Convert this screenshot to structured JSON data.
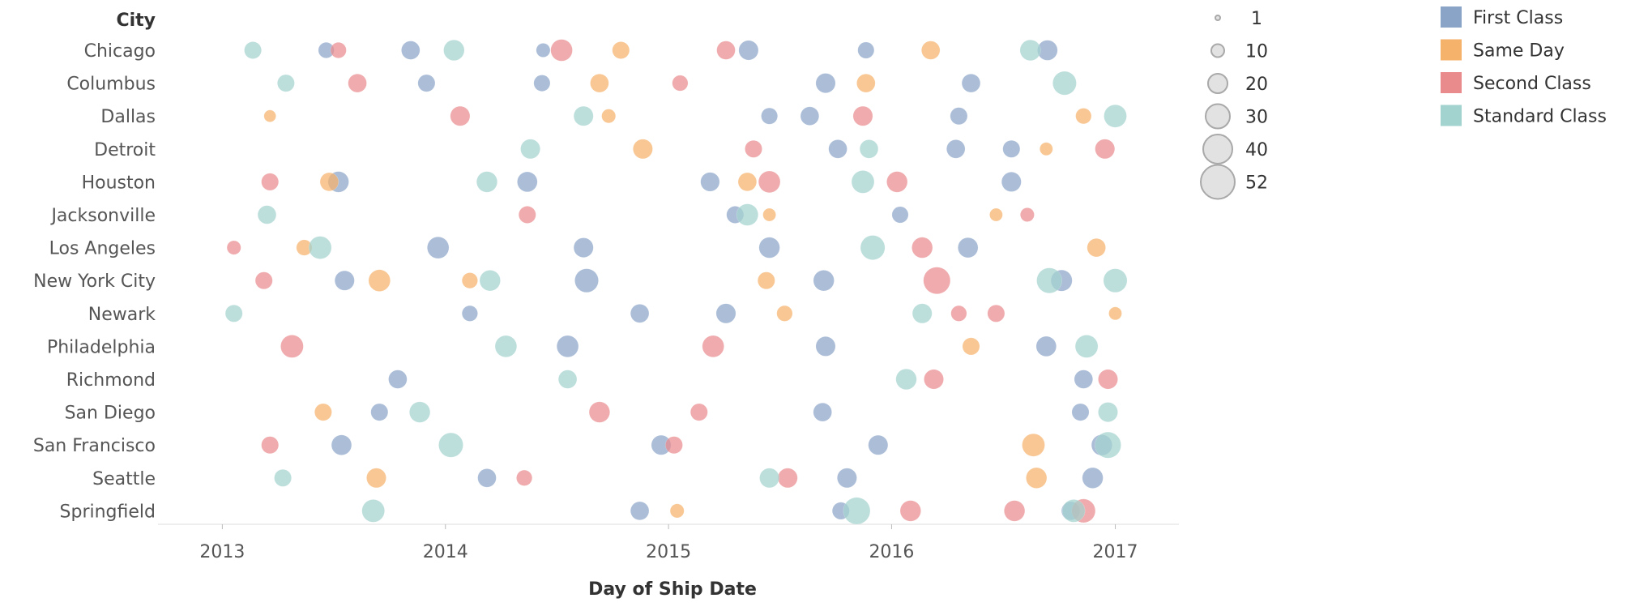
{
  "chart_data": {
    "type": "scatter",
    "row_header": "City",
    "xlabel": "Day of Ship Date",
    "ylabel": "",
    "x_tick_labels": [
      "2013",
      "2014",
      "2015",
      "2016",
      "2017"
    ],
    "x_range": [
      "2012-10-01",
      "2017-04-15"
    ],
    "categories": [
      "Chicago",
      "Columbus",
      "Dallas",
      "Detroit",
      "Houston",
      "Jacksonville",
      "Los Angeles",
      "New York City",
      "Newark",
      "Philadelphia",
      "Richmond",
      "San Diego",
      "San Francisco",
      "Seattle",
      "Springfield"
    ],
    "size_legend": {
      "values": [
        1,
        10,
        20,
        30,
        40,
        52
      ],
      "labels": [
        "1",
        "10",
        "20",
        "30",
        "40",
        "52"
      ]
    },
    "color_legend": [
      {
        "name": "First Class",
        "color": "#8AA4C8"
      },
      {
        "name": "Same Day",
        "color": "#F5B26B"
      },
      {
        "name": "Second Class",
        "color": "#E98A8D"
      },
      {
        "name": "Standard Class",
        "color": "#A3D3CE"
      }
    ],
    "grid": false,
    "legend_position": "right",
    "series": [
      {
        "name": "First Class",
        "points": [
          {
            "city": "Chicago",
            "date": "2013-06-20",
            "qty": 8
          },
          {
            "city": "Chicago",
            "date": "2013-11-05",
            "qty": 12
          },
          {
            "city": "Chicago",
            "date": "2014-06-10",
            "qty": 6
          },
          {
            "city": "Chicago",
            "date": "2015-05-12",
            "qty": 14
          },
          {
            "city": "Chicago",
            "date": "2015-11-20",
            "qty": 9
          },
          {
            "city": "Chicago",
            "date": "2016-09-12",
            "qty": 15
          },
          {
            "city": "Columbus",
            "date": "2013-12-01",
            "qty": 10
          },
          {
            "city": "Columbus",
            "date": "2014-06-08",
            "qty": 9
          },
          {
            "city": "Columbus",
            "date": "2015-09-15",
            "qty": 14
          },
          {
            "city": "Columbus",
            "date": "2016-05-10",
            "qty": 12
          },
          {
            "city": "Dallas",
            "date": "2015-06-15",
            "qty": 9
          },
          {
            "city": "Dallas",
            "date": "2015-08-20",
            "qty": 12
          },
          {
            "city": "Dallas",
            "date": "2016-04-20",
            "qty": 10
          },
          {
            "city": "Detroit",
            "date": "2015-10-05",
            "qty": 12
          },
          {
            "city": "Detroit",
            "date": "2016-04-15",
            "qty": 12
          },
          {
            "city": "Detroit",
            "date": "2016-07-15",
            "qty": 10
          },
          {
            "city": "Houston",
            "date": "2013-07-10",
            "qty": 16
          },
          {
            "city": "Houston",
            "date": "2014-05-15",
            "qty": 15
          },
          {
            "city": "Houston",
            "date": "2015-03-10",
            "qty": 13
          },
          {
            "city": "Houston",
            "date": "2016-07-15",
            "qty": 14
          },
          {
            "city": "Jacksonville",
            "date": "2015-04-20",
            "qty": 10
          },
          {
            "city": "Jacksonville",
            "date": "2016-01-15",
            "qty": 9
          },
          {
            "city": "Los Angeles",
            "date": "2013-12-20",
            "qty": 18
          },
          {
            "city": "Los Angeles",
            "date": "2014-08-15",
            "qty": 14
          },
          {
            "city": "Los Angeles",
            "date": "2015-06-15",
            "qty": 16
          },
          {
            "city": "Los Angeles",
            "date": "2016-05-05",
            "qty": 15
          },
          {
            "city": "New York City",
            "date": "2013-07-20",
            "qty": 14
          },
          {
            "city": "New York City",
            "date": "2014-08-20",
            "qty": 22
          },
          {
            "city": "New York City",
            "date": "2015-09-12",
            "qty": 16
          },
          {
            "city": "New York City",
            "date": "2016-10-05",
            "qty": 17
          },
          {
            "city": "Newark",
            "date": "2014-02-10",
            "qty": 8
          },
          {
            "city": "Newark",
            "date": "2014-11-15",
            "qty": 12
          },
          {
            "city": "Newark",
            "date": "2015-04-05",
            "qty": 14
          },
          {
            "city": "Philadelphia",
            "date": "2014-07-20",
            "qty": 18
          },
          {
            "city": "Philadelphia",
            "date": "2015-09-15",
            "qty": 14
          },
          {
            "city": "Philadelphia",
            "date": "2016-09-10",
            "qty": 15
          },
          {
            "city": "Richmond",
            "date": "2013-10-15",
            "qty": 12
          },
          {
            "city": "Richmond",
            "date": "2016-11-10",
            "qty": 12
          },
          {
            "city": "San Diego",
            "date": "2013-09-15",
            "qty": 10
          },
          {
            "city": "San Diego",
            "date": "2015-09-10",
            "qty": 12
          },
          {
            "city": "San Diego",
            "date": "2016-11-05",
            "qty": 10
          },
          {
            "city": "San Francisco",
            "date": "2013-07-15",
            "qty": 15
          },
          {
            "city": "San Francisco",
            "date": "2014-12-20",
            "qty": 14
          },
          {
            "city": "San Francisco",
            "date": "2015-12-10",
            "qty": 14
          },
          {
            "city": "San Francisco",
            "date": "2016-12-10",
            "qty": 16
          },
          {
            "city": "Seattle",
            "date": "2014-03-10",
            "qty": 12
          },
          {
            "city": "Seattle",
            "date": "2015-10-20",
            "qty": 14
          },
          {
            "city": "Seattle",
            "date": "2016-11-25",
            "qty": 16
          },
          {
            "city": "Springfield",
            "date": "2014-11-15",
            "qty": 12
          },
          {
            "city": "Springfield",
            "date": "2015-10-10",
            "qty": 10
          },
          {
            "city": "Springfield",
            "date": "2016-10-20",
            "qty": 12
          }
        ]
      },
      {
        "name": "Same Day",
        "points": [
          {
            "city": "Chicago",
            "date": "2014-10-15",
            "qty": 10
          },
          {
            "city": "Chicago",
            "date": "2016-03-05",
            "qty": 12
          },
          {
            "city": "Columbus",
            "date": "2014-09-10",
            "qty": 12
          },
          {
            "city": "Columbus",
            "date": "2015-11-20",
            "qty": 12
          },
          {
            "city": "Dallas",
            "date": "2013-03-20",
            "qty": 4
          },
          {
            "city": "Dallas",
            "date": "2014-09-25",
            "qty": 6
          },
          {
            "city": "Dallas",
            "date": "2016-11-10",
            "qty": 8
          },
          {
            "city": "Detroit",
            "date": "2014-11-20",
            "qty": 14
          },
          {
            "city": "Detroit",
            "date": "2016-09-10",
            "qty": 5
          },
          {
            "city": "Houston",
            "date": "2013-06-25",
            "qty": 12
          },
          {
            "city": "Houston",
            "date": "2015-05-10",
            "qty": 12
          },
          {
            "city": "Jacksonville",
            "date": "2015-06-15",
            "qty": 5
          },
          {
            "city": "Jacksonville",
            "date": "2016-06-20",
            "qty": 5
          },
          {
            "city": "Los Angeles",
            "date": "2013-05-15",
            "qty": 8
          },
          {
            "city": "Los Angeles",
            "date": "2016-12-01",
            "qty": 12
          },
          {
            "city": "New York City",
            "date": "2013-09-15",
            "qty": 18
          },
          {
            "city": "New York City",
            "date": "2014-02-10",
            "qty": 8
          },
          {
            "city": "New York City",
            "date": "2015-06-10",
            "qty": 10
          },
          {
            "city": "Newark",
            "date": "2015-07-10",
            "qty": 8
          },
          {
            "city": "Newark",
            "date": "2017-01-01",
            "qty": 5
          },
          {
            "city": "Philadelphia",
            "date": "2016-05-10",
            "qty": 10
          },
          {
            "city": "San Diego",
            "date": "2013-06-15",
            "qty": 10
          },
          {
            "city": "San Francisco",
            "date": "2016-08-20",
            "qty": 20
          },
          {
            "city": "Seattle",
            "date": "2013-09-10",
            "qty": 14
          },
          {
            "city": "Seattle",
            "date": "2016-08-25",
            "qty": 16
          },
          {
            "city": "Springfield",
            "date": "2015-01-15",
            "qty": 6
          }
        ]
      },
      {
        "name": "Second Class",
        "points": [
          {
            "city": "Chicago",
            "date": "2013-07-10",
            "qty": 8
          },
          {
            "city": "Chicago",
            "date": "2014-07-10",
            "qty": 18
          },
          {
            "city": "Chicago",
            "date": "2015-04-05",
            "qty": 12
          },
          {
            "city": "Columbus",
            "date": "2013-08-10",
            "qty": 12
          },
          {
            "city": "Columbus",
            "date": "2015-01-20",
            "qty": 8
          },
          {
            "city": "Dallas",
            "date": "2014-01-25",
            "qty": 14
          },
          {
            "city": "Dallas",
            "date": "2015-11-15",
            "qty": 14
          },
          {
            "city": "Detroit",
            "date": "2015-05-20",
            "qty": 10
          },
          {
            "city": "Detroit",
            "date": "2016-12-15",
            "qty": 14
          },
          {
            "city": "Houston",
            "date": "2013-03-20",
            "qty": 10
          },
          {
            "city": "Houston",
            "date": "2015-06-15",
            "qty": 18
          },
          {
            "city": "Houston",
            "date": "2016-01-10",
            "qty": 16
          },
          {
            "city": "Jacksonville",
            "date": "2014-05-15",
            "qty": 10
          },
          {
            "city": "Jacksonville",
            "date": "2016-08-10",
            "qty": 6
          },
          {
            "city": "Los Angeles",
            "date": "2013-01-20",
            "qty": 6
          },
          {
            "city": "Los Angeles",
            "date": "2016-02-20",
            "qty": 16
          },
          {
            "city": "New York City",
            "date": "2016-03-15",
            "qty": 30
          },
          {
            "city": "New York City",
            "date": "2013-03-10",
            "qty": 10
          },
          {
            "city": "Newark",
            "date": "2016-04-20",
            "qty": 8
          },
          {
            "city": "Newark",
            "date": "2016-06-20",
            "qty": 10
          },
          {
            "city": "Philadelphia",
            "date": "2013-04-25",
            "qty": 20
          },
          {
            "city": "Philadelphia",
            "date": "2015-03-15",
            "qty": 18
          },
          {
            "city": "Richmond",
            "date": "2016-03-10",
            "qty": 14
          },
          {
            "city": "Richmond",
            "date": "2016-12-20",
            "qty": 14
          },
          {
            "city": "San Diego",
            "date": "2014-09-10",
            "qty": 16
          },
          {
            "city": "San Diego",
            "date": "2015-02-20",
            "qty": 10
          },
          {
            "city": "San Francisco",
            "date": "2013-03-20",
            "qty": 10
          },
          {
            "city": "San Francisco",
            "date": "2015-01-10",
            "qty": 10
          },
          {
            "city": "Seattle",
            "date": "2014-05-10",
            "qty": 8
          },
          {
            "city": "Seattle",
            "date": "2015-07-15",
            "qty": 14
          },
          {
            "city": "Springfield",
            "date": "2016-02-01",
            "qty": 16
          },
          {
            "city": "Springfield",
            "date": "2016-07-20",
            "qty": 16
          },
          {
            "city": "Springfield",
            "date": "2016-11-10",
            "qty": 22
          }
        ]
      },
      {
        "name": "Standard Class",
        "points": [
          {
            "city": "Chicago",
            "date": "2013-02-20",
            "qty": 10
          },
          {
            "city": "Chicago",
            "date": "2014-01-15",
            "qty": 16
          },
          {
            "city": "Chicago",
            "date": "2016-08-15",
            "qty": 16
          },
          {
            "city": "Columbus",
            "date": "2013-04-15",
            "qty": 10
          },
          {
            "city": "Columbus",
            "date": "2016-10-10",
            "qty": 22
          },
          {
            "city": "Dallas",
            "date": "2014-08-15",
            "qty": 14
          },
          {
            "city": "Dallas",
            "date": "2017-01-01",
            "qty": 20
          },
          {
            "city": "Detroit",
            "date": "2014-05-20",
            "qty": 14
          },
          {
            "city": "Detroit",
            "date": "2015-11-25",
            "qty": 12
          },
          {
            "city": "Houston",
            "date": "2014-03-10",
            "qty": 16
          },
          {
            "city": "Houston",
            "date": "2015-11-15",
            "qty": 20
          },
          {
            "city": "Jacksonville",
            "date": "2013-03-15",
            "qty": 12
          },
          {
            "city": "Jacksonville",
            "date": "2015-05-10",
            "qty": 18
          },
          {
            "city": "Los Angeles",
            "date": "2013-06-10",
            "qty": 20
          },
          {
            "city": "Los Angeles",
            "date": "2015-12-01",
            "qty": 24
          },
          {
            "city": "New York City",
            "date": "2014-03-15",
            "qty": 16
          },
          {
            "city": "New York City",
            "date": "2016-09-15",
            "qty": 26
          },
          {
            "city": "New York City",
            "date": "2017-01-01",
            "qty": 22
          },
          {
            "city": "Newark",
            "date": "2013-01-20",
            "qty": 10
          },
          {
            "city": "Newark",
            "date": "2016-02-20",
            "qty": 14
          },
          {
            "city": "Philadelphia",
            "date": "2014-04-10",
            "qty": 18
          },
          {
            "city": "Philadelphia",
            "date": "2016-11-15",
            "qty": 20
          },
          {
            "city": "Richmond",
            "date": "2014-07-20",
            "qty": 12
          },
          {
            "city": "Richmond",
            "date": "2016-01-25",
            "qty": 16
          },
          {
            "city": "San Diego",
            "date": "2013-11-20",
            "qty": 16
          },
          {
            "city": "San Diego",
            "date": "2016-12-20",
            "qty": 14
          },
          {
            "city": "San Francisco",
            "date": "2014-01-10",
            "qty": 24
          },
          {
            "city": "San Francisco",
            "date": "2016-12-20",
            "qty": 28
          },
          {
            "city": "Seattle",
            "date": "2013-04-10",
            "qty": 10
          },
          {
            "city": "Seattle",
            "date": "2015-06-15",
            "qty": 14
          },
          {
            "city": "Springfield",
            "date": "2013-09-05",
            "qty": 20
          },
          {
            "city": "Springfield",
            "date": "2015-11-05",
            "qty": 30
          },
          {
            "city": "Springfield",
            "date": "2016-10-25",
            "qty": 20
          }
        ]
      }
    ]
  }
}
